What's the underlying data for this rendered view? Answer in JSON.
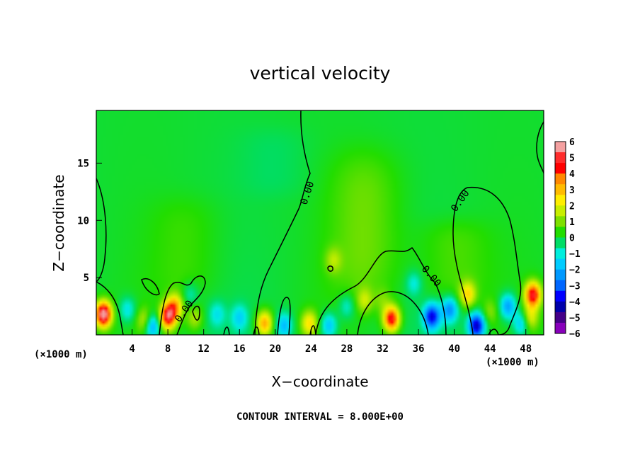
{
  "chart_data": {
    "type": "heatmap",
    "title": "vertical velocity",
    "xlabel": "X−coordinate",
    "ylabel": "Z−coordinate",
    "xlim": [
      0,
      50
    ],
    "ylim": [
      0,
      19.6
    ],
    "x_ticks": [
      4,
      8,
      12,
      16,
      20,
      24,
      28,
      32,
      36,
      40,
      44,
      48
    ],
    "y_ticks": [
      5,
      10,
      15
    ],
    "x_unit_left": "(×1000 m)",
    "x_unit_right": "(×1000 m)",
    "footer": "CONTOUR INTERVAL = 8.000E+00",
    "contour_label": "0.00",
    "colorbar": {
      "ticks": [
        "6",
        "5",
        "4",
        "3",
        "2",
        "1",
        "0",
        "−1",
        "−2",
        "−3",
        "−4",
        "−5",
        "−6"
      ],
      "colors": [
        "#f4a0a0",
        "#ff2c2c",
        "#ff0000",
        "#ff8800",
        "#ffbb00",
        "#ffee00",
        "#c8ee00",
        "#7ee000",
        "#22dd00",
        "#00dd66",
        "#00eedd",
        "#00ccff",
        "#0099ff",
        "#0066ff",
        "#0000ff",
        "#0000aa",
        "#440088",
        "#8800bb"
      ]
    },
    "background_value": 0,
    "features": [
      {
        "x": 0.8,
        "z": 1.8,
        "peak": 6.5
      },
      {
        "x": 3.5,
        "z": 2.2,
        "peak": -1.4
      },
      {
        "x": 5.5,
        "z": 1.2,
        "peak": 2.0
      },
      {
        "x": 6.2,
        "z": 0.8,
        "peak": -3.0
      },
      {
        "x": 8.0,
        "z": 1.6,
        "peak": 5.0
      },
      {
        "x": 8.8,
        "z": 2.5,
        "peak": 3.0
      },
      {
        "x": 10.5,
        "z": 3.5,
        "peak": -1.0
      },
      {
        "x": 11.0,
        "z": 1.5,
        "peak": 1.5
      },
      {
        "x": 13.5,
        "z": 1.8,
        "peak": -1.2
      },
      {
        "x": 16.0,
        "z": 1.5,
        "peak": -1.5
      },
      {
        "x": 18.8,
        "z": 1.0,
        "peak": 3.5
      },
      {
        "x": 21.0,
        "z": 0.8,
        "peak": -2.0
      },
      {
        "x": 23.8,
        "z": 1.0,
        "peak": 2.5
      },
      {
        "x": 26.0,
        "z": 0.8,
        "peak": -2.0
      },
      {
        "x": 26.5,
        "z": 6.5,
        "peak": 1.2
      },
      {
        "x": 28.0,
        "z": 2.5,
        "peak": -1.2
      },
      {
        "x": 30.0,
        "z": 3.0,
        "peak": 1.5
      },
      {
        "x": 32.0,
        "z": 3.0,
        "peak": 0.8
      },
      {
        "x": 33.0,
        "z": 1.4,
        "peak": 5.0
      },
      {
        "x": 35.5,
        "z": 4.5,
        "peak": -1.2
      },
      {
        "x": 37.5,
        "z": 1.6,
        "peak": -4.0
      },
      {
        "x": 39.5,
        "z": 2.2,
        "peak": -2.5
      },
      {
        "x": 41.5,
        "z": 3.5,
        "peak": 2.5
      },
      {
        "x": 42.5,
        "z": 0.8,
        "peak": -4.5
      },
      {
        "x": 44.0,
        "z": 2.0,
        "peak": 1.0
      },
      {
        "x": 46.0,
        "z": 2.5,
        "peak": -2.5
      },
      {
        "x": 47.5,
        "z": 1.0,
        "peak": -2.0
      },
      {
        "x": 48.8,
        "z": 3.5,
        "peak": 5.0
      },
      {
        "x": 48.5,
        "z": 1.5,
        "peak": 2.0
      }
    ],
    "plumes": [
      {
        "x": 10,
        "z0": 3,
        "z1": 12,
        "peak": 0.5
      },
      {
        "x": 30,
        "z0": 3,
        "z1": 16,
        "peak": 0.9
      },
      {
        "x": 40,
        "z0": 3,
        "z1": 10,
        "peak": 0.7
      },
      {
        "x": 20,
        "z0": 12,
        "z1": 18,
        "peak": -0.3
      }
    ]
  }
}
